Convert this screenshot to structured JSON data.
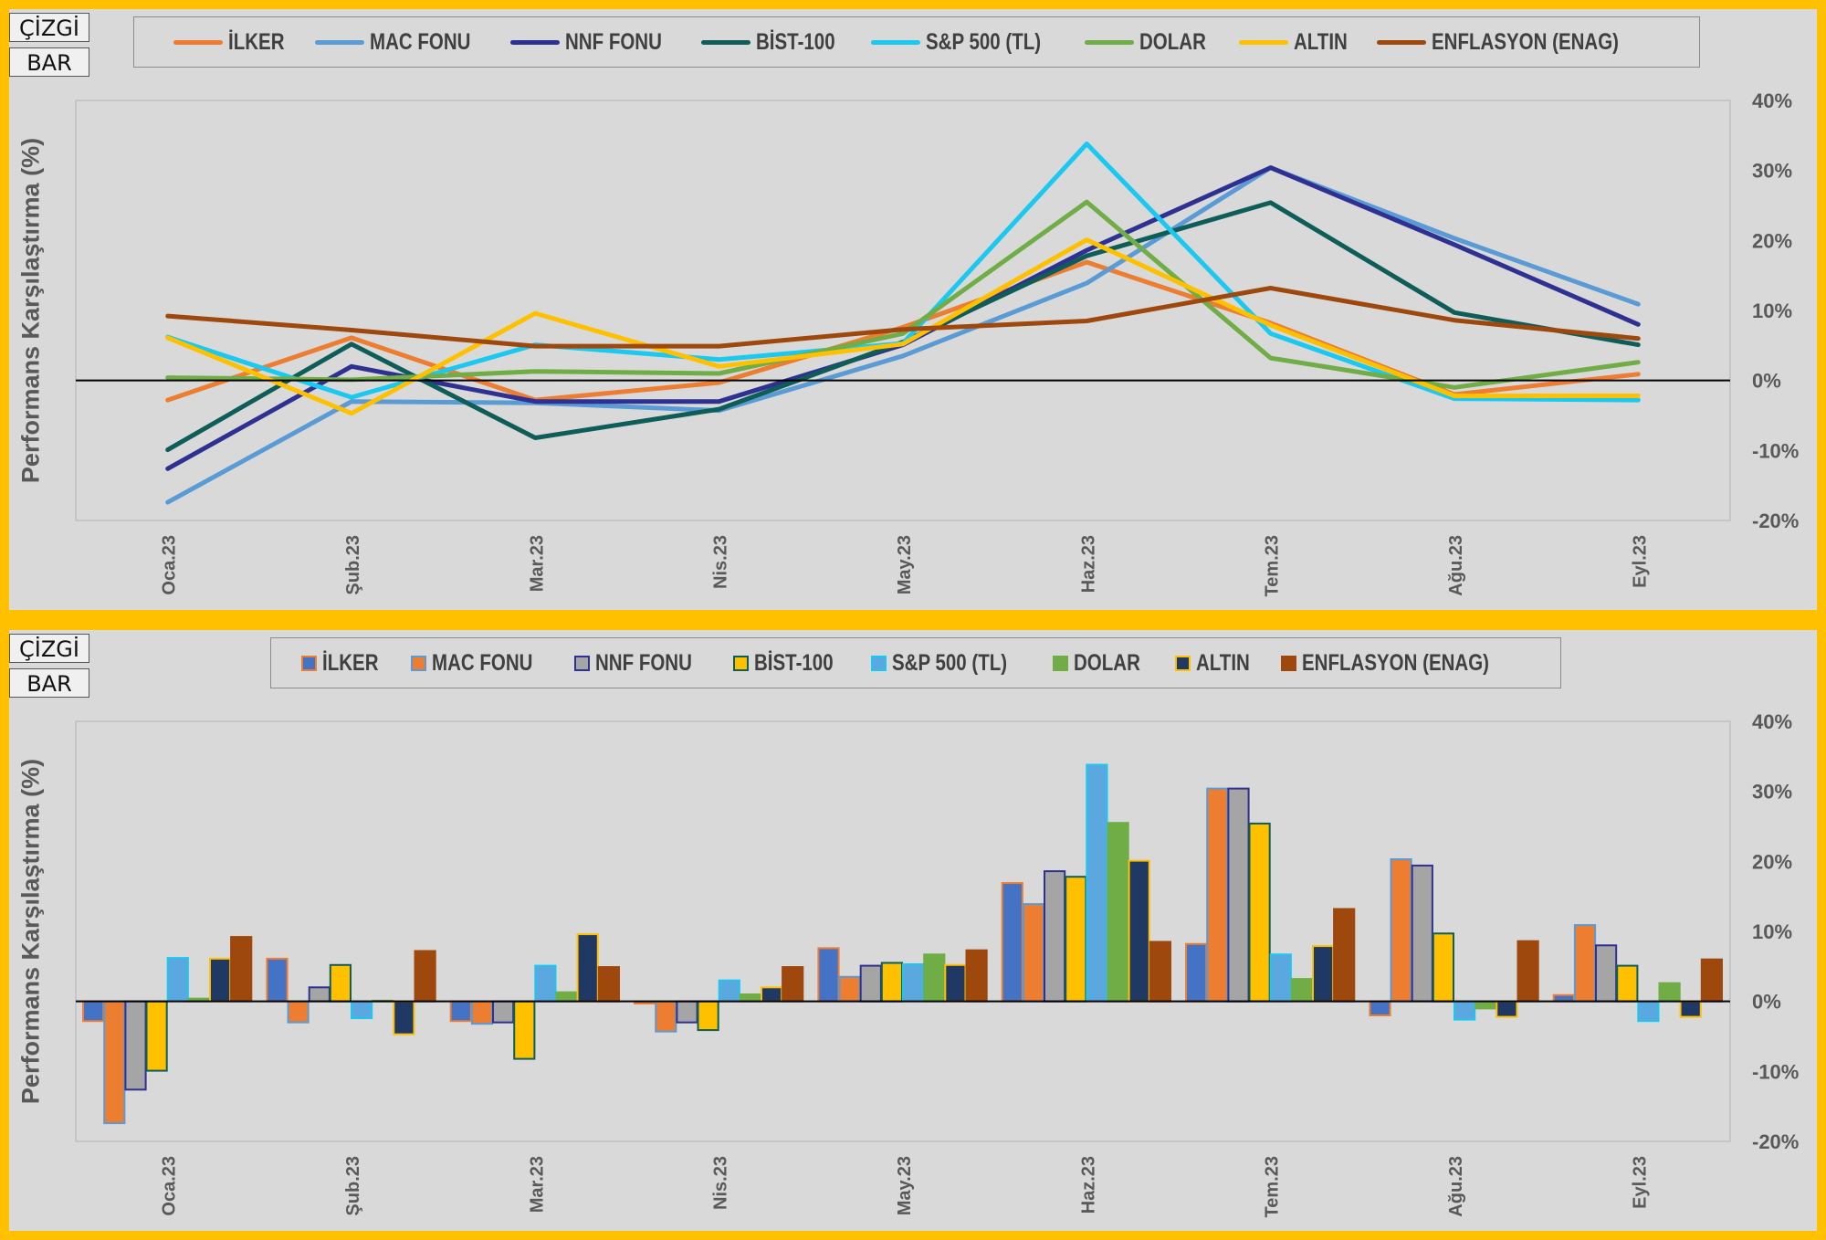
{
  "buttons": {
    "line_label": "ÇİZGİ",
    "bar_label": "BAR"
  },
  "ylabel": "Performans Karşılaştırma (%)",
  "months": [
    "Oca.23",
    "Şub.23",
    "Mar.23",
    "Nis.23",
    "May.23",
    "Haz.23",
    "Tem.23",
    "Ağu.23",
    "Eyl.23"
  ],
  "y_ticks": [
    "40%",
    "30%",
    "20%",
    "10%",
    "0%",
    "-10%",
    "-20%"
  ],
  "chart_data": [
    {
      "type": "line",
      "ylabel": "Performans Karşılaştırma (%)",
      "ylim": [
        -20,
        40
      ],
      "y_axis_side": "right",
      "grid": false,
      "legend_position": "top",
      "categories": [
        "Oca.23",
        "Şub.23",
        "Mar.23",
        "Nis.23",
        "May.23",
        "Haz.23",
        "Tem.23",
        "Ağu.23",
        "Eyl.23"
      ],
      "series": [
        {
          "name": "İLKER",
          "color": "#ED7D31",
          "values": [
            -2.8,
            6.1,
            -2.8,
            -0.3,
            7.6,
            16.9,
            8.2,
            -2.0,
            0.9
          ]
        },
        {
          "name": "MAC FONU",
          "color": "#5B9BD5",
          "values": [
            -17.4,
            -3.0,
            -3.2,
            -4.3,
            3.5,
            13.9,
            30.4,
            20.3,
            10.9
          ]
        },
        {
          "name": "NNF FONU",
          "color": "#2E3192",
          "values": [
            -12.6,
            2.0,
            -3.0,
            -3.0,
            5.1,
            18.6,
            30.4,
            19.4,
            8.0
          ]
        },
        {
          "name": "BİST-100",
          "color": "#0F5D58",
          "values": [
            -9.9,
            5.2,
            -8.2,
            -4.1,
            5.5,
            17.8,
            25.4,
            9.7,
            5.1
          ]
        },
        {
          "name": "S&P 500 (TL)",
          "color": "#1AC8F0",
          "values": [
            6.2,
            -2.4,
            5.1,
            3.0,
            5.3,
            33.8,
            6.7,
            -2.6,
            -2.8
          ]
        },
        {
          "name": "DOLAR",
          "color": "#70AD47",
          "values": [
            0.4,
            0.1,
            1.3,
            1.0,
            6.7,
            25.5,
            3.2,
            -1.0,
            2.6
          ]
        },
        {
          "name": "ALTIN",
          "color": "#FFC000",
          "values": [
            6.1,
            -4.7,
            9.6,
            2.0,
            5.2,
            20.1,
            7.9,
            -2.2,
            -2.2
          ]
        },
        {
          "name": "ENFLASYON (ENAG)",
          "color": "#9E480E",
          "values": [
            9.2,
            7.2,
            4.9,
            4.9,
            7.3,
            8.5,
            13.2,
            8.6,
            6.0
          ]
        }
      ]
    },
    {
      "type": "bar",
      "ylabel": "Performans Karşılaştırma (%)",
      "ylim": [
        -20,
        40
      ],
      "y_axis_side": "right",
      "grid": false,
      "legend_position": "top",
      "categories": [
        "Oca.23",
        "Şub.23",
        "Mar.23",
        "Nis.23",
        "May.23",
        "Haz.23",
        "Tem.23",
        "Ağu.23",
        "Eyl.23"
      ],
      "series": [
        {
          "name": "İLKER",
          "color": "#4472C4",
          "border": "#ED7D31",
          "values": [
            -2.8,
            6.1,
            -2.8,
            -0.3,
            7.6,
            16.9,
            8.2,
            -2.0,
            0.9
          ]
        },
        {
          "name": "MAC FONU",
          "color": "#ED7D31",
          "border": "#5B9BD5",
          "values": [
            -17.4,
            -3.0,
            -3.2,
            -4.3,
            3.5,
            13.9,
            30.4,
            20.3,
            10.9
          ]
        },
        {
          "name": "NNF FONU",
          "color": "#A5A5A5",
          "border": "#2E3192",
          "values": [
            -12.6,
            2.0,
            -3.0,
            -3.0,
            5.1,
            18.6,
            30.4,
            19.4,
            8.0
          ]
        },
        {
          "name": "BİST-100",
          "color": "#FFC000",
          "border": "#0F5D58",
          "values": [
            -9.9,
            5.2,
            -8.2,
            -4.1,
            5.5,
            17.8,
            25.4,
            9.7,
            5.1
          ]
        },
        {
          "name": "S&P 500 (TL)",
          "color": "#5BA8E0",
          "border": "#1AC8F0",
          "values": [
            6.2,
            -2.4,
            5.1,
            3.0,
            5.3,
            33.8,
            6.7,
            -2.6,
            -2.8
          ]
        },
        {
          "name": "DOLAR",
          "color": "#70AD47",
          "border": "#70AD47",
          "values": [
            0.4,
            0.1,
            1.3,
            1.0,
            6.7,
            25.5,
            3.2,
            -1.0,
            2.6
          ]
        },
        {
          "name": "ALTIN",
          "color": "#1F3864",
          "border": "#FFC000",
          "values": [
            6.1,
            -4.7,
            9.6,
            2.0,
            5.2,
            20.1,
            7.9,
            -2.2,
            -2.2
          ]
        },
        {
          "name": "ENFLASYON (ENAG)",
          "color": "#9E480E",
          "border": "#9E480E",
          "values": [
            9.2,
            7.2,
            4.9,
            4.9,
            7.3,
            8.5,
            13.2,
            8.6,
            6.0
          ]
        }
      ]
    }
  ]
}
